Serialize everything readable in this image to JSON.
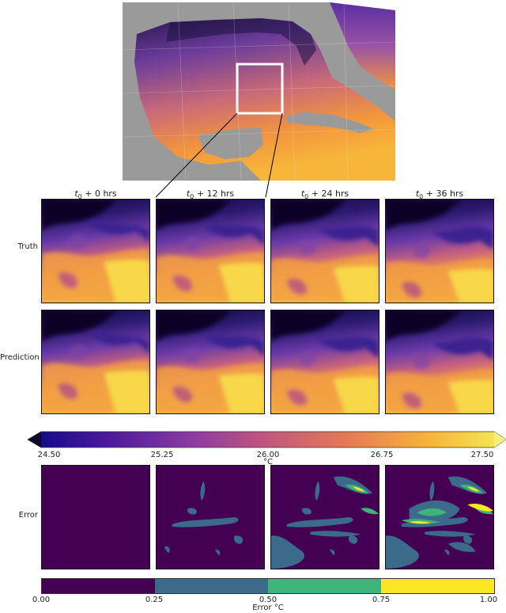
{
  "columns": [
    {
      "t0": "t",
      "sub": "0",
      "rest": " + 0 hrs"
    },
    {
      "t0": "t",
      "sub": "0",
      "rest": " + 12 hrs"
    },
    {
      "t0": "t",
      "sub": "0",
      "rest": " + 24 hrs"
    },
    {
      "t0": "t",
      "sub": "0",
      "rest": " + 36 hrs"
    }
  ],
  "rows": {
    "truth": "Truth",
    "prediction": "Prediction",
    "error": "Error"
  },
  "temperature_colorbar": {
    "ticks": [
      "24.50",
      "25.25",
      "26.00",
      "26.75",
      "27.50"
    ],
    "unit_label": "°C",
    "colors": [
      "#0d0887",
      "#5c3aa3",
      "#9b4b9b",
      "#d6626f",
      "#f39a3c",
      "#f9dd36",
      "#f5f07a"
    ],
    "extend": "both"
  },
  "error_colorbar": {
    "ticks": [
      "0.00",
      "0.25",
      "0.50",
      "0.75",
      "1.00"
    ],
    "label": "Error  °C",
    "colors": [
      "#440154",
      "#3b6a8b",
      "#3fb47a",
      "#fde725"
    ]
  },
  "map": {
    "ocean_gradient": [
      "#3b1f6e",
      "#8a4fa0",
      "#d97a5f",
      "#f4a340",
      "#f7c63e"
    ],
    "land_color": "#9a9a9a",
    "box_color": "#ffffff"
  }
}
